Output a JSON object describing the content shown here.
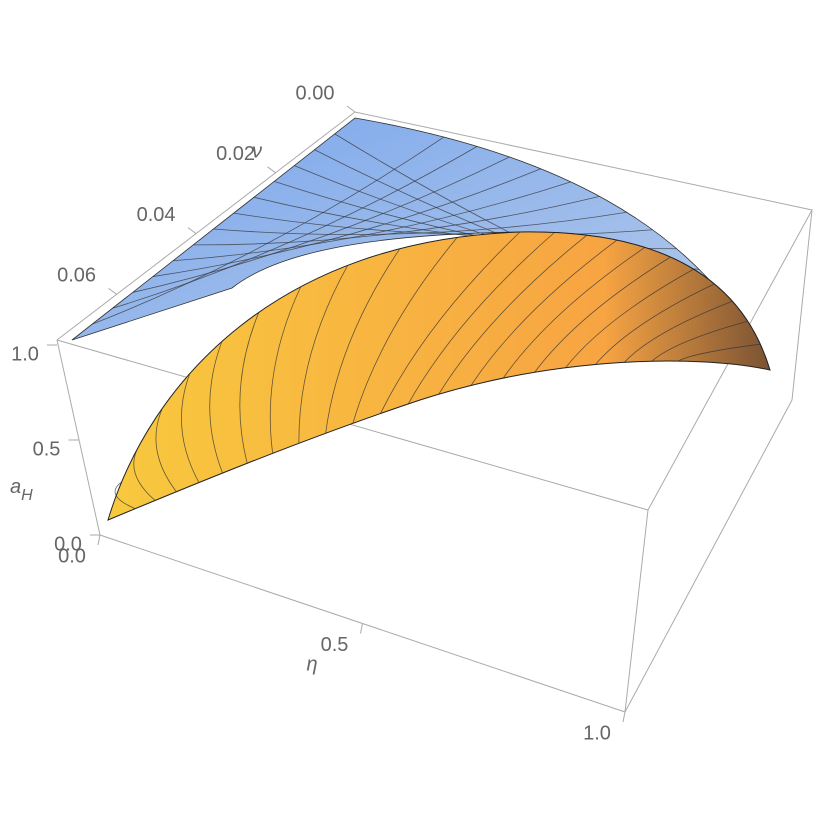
{
  "chart_data": {
    "type": "surface3d",
    "xlabel": "η",
    "ylabel": "ν",
    "zlabel": [
      "a",
      "H"
    ],
    "xlim": [
      0,
      1
    ],
    "xticks": [
      {
        "value": 0,
        "label": "0.0"
      },
      0.5,
      {
        "value": 1,
        "label": "1.0"
      }
    ],
    "ylim": [
      0,
      0.075
    ],
    "yticks": [
      {
        "value": 0,
        "label": "0.00"
      },
      0.02,
      0.04,
      0.06
    ],
    "zlim": [
      0,
      1
    ],
    "zticks": [
      {
        "value": 0,
        "label": "0.0"
      },
      0.5,
      {
        "value": 1,
        "label": "1.0"
      }
    ],
    "series": [
      {
        "color": "#7aa6ec"
      },
      {
        "color": "#f8c93e"
      }
    ]
  }
}
